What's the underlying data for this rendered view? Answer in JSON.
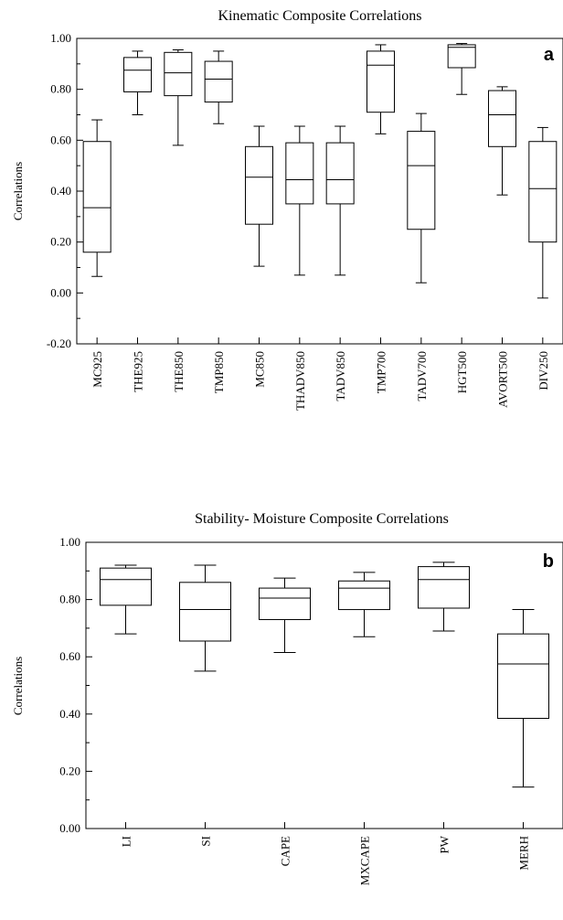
{
  "chart_data": [
    {
      "type": "box",
      "panel_label": "a",
      "title": "Kinematic Composite Correlations",
      "xlabel": "",
      "ylabel": "Correlations",
      "ylim": [
        -0.2,
        1.0
      ],
      "yticks": [
        "-0.20",
        "0.00",
        "0.20",
        "0.40",
        "0.60",
        "0.80",
        "1.00"
      ],
      "grid": false,
      "categories": [
        "MC925",
        "THE925",
        "THE850",
        "TMP850",
        "MC850",
        "THADV850",
        "TADV850",
        "TMP700",
        "TADV700",
        "HGT500",
        "AVORT500",
        "DIV250"
      ],
      "boxes": [
        {
          "min": 0.065,
          "q1": 0.16,
          "median": 0.335,
          "q3": 0.595,
          "max": 0.68
        },
        {
          "min": 0.7,
          "q1": 0.79,
          "median": 0.875,
          "q3": 0.925,
          "max": 0.95
        },
        {
          "min": 0.58,
          "q1": 0.775,
          "median": 0.865,
          "q3": 0.945,
          "max": 0.955
        },
        {
          "min": 0.665,
          "q1": 0.75,
          "median": 0.84,
          "q3": 0.91,
          "max": 0.95
        },
        {
          "min": 0.105,
          "q1": 0.27,
          "median": 0.455,
          "q3": 0.575,
          "max": 0.655
        },
        {
          "min": 0.07,
          "q1": 0.35,
          "median": 0.445,
          "q3": 0.59,
          "max": 0.655
        },
        {
          "min": 0.07,
          "q1": 0.35,
          "median": 0.445,
          "q3": 0.59,
          "max": 0.655
        },
        {
          "min": 0.625,
          "q1": 0.71,
          "median": 0.895,
          "q3": 0.95,
          "max": 0.975
        },
        {
          "min": 0.04,
          "q1": 0.25,
          "median": 0.5,
          "q3": 0.635,
          "max": 0.705
        },
        {
          "min": 0.78,
          "q1": 0.885,
          "median": 0.965,
          "q3": 0.975,
          "max": 0.98
        },
        {
          "min": 0.385,
          "q1": 0.575,
          "median": 0.7,
          "q3": 0.795,
          "max": 0.81
        },
        {
          "min": -0.02,
          "q1": 0.2,
          "median": 0.41,
          "q3": 0.595,
          "max": 0.65
        }
      ]
    },
    {
      "type": "box",
      "panel_label": "b",
      "title": "Stability- Moisture Composite Correlations",
      "xlabel": "",
      "ylabel": "Correlations",
      "ylim": [
        0.0,
        1.0
      ],
      "yticks": [
        "0.00",
        "0.20",
        "0.40",
        "0.60",
        "0.80",
        "1.00"
      ],
      "grid": false,
      "categories": [
        "LI",
        "SI",
        "CAPE",
        "MXCAPE",
        "PW",
        "MERH"
      ],
      "boxes": [
        {
          "min": 0.68,
          "q1": 0.78,
          "median": 0.87,
          "q3": 0.91,
          "max": 0.92
        },
        {
          "min": 0.55,
          "q1": 0.655,
          "median": 0.765,
          "q3": 0.86,
          "max": 0.92
        },
        {
          "min": 0.615,
          "q1": 0.73,
          "median": 0.805,
          "q3": 0.84,
          "max": 0.875
        },
        {
          "min": 0.67,
          "q1": 0.765,
          "median": 0.84,
          "q3": 0.865,
          "max": 0.895
        },
        {
          "min": 0.69,
          "q1": 0.77,
          "median": 0.87,
          "q3": 0.915,
          "max": 0.93
        },
        {
          "min": 0.145,
          "q1": 0.385,
          "median": 0.575,
          "q3": 0.68,
          "max": 0.765
        }
      ]
    }
  ]
}
